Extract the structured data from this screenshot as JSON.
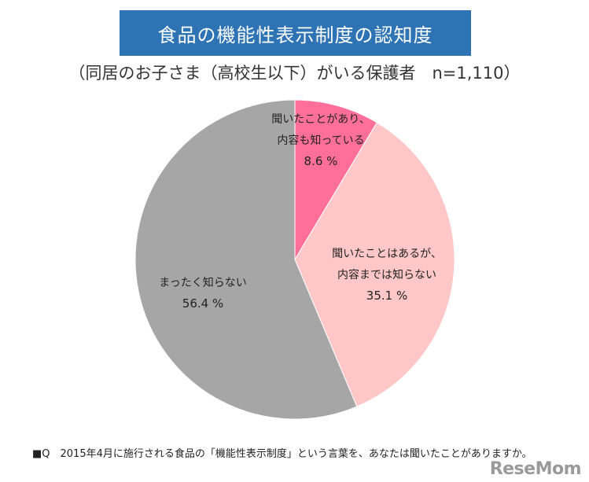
{
  "title": "食品の機能性表示制度の認知度",
  "subtitle": "（同居のお子さま（高校生以下）がいる保護者　n=1,110）",
  "footnote": "■Q　2015年4月に施行される食品の「機能性表示制度」という言葉を、あなたは聞いたことがありますか。",
  "watermark": "ReseMom",
  "chart_data": {
    "type": "pie",
    "slices": [
      {
        "label_lines": [
          "聞いたことがあり、",
          "内容も知っている"
        ],
        "value": 8.6,
        "value_text": "8.6 %",
        "color": "#ff6f9a"
      },
      {
        "label_lines": [
          "聞いたことはあるが、",
          "内容までは知らない"
        ],
        "value": 35.1,
        "value_text": "35.1 %",
        "color": "#ffc7c7"
      },
      {
        "label_lines": [
          "まったく知らない"
        ],
        "value": 56.4,
        "value_text": "56.4 %",
        "color": "#a6a6a6"
      }
    ]
  }
}
